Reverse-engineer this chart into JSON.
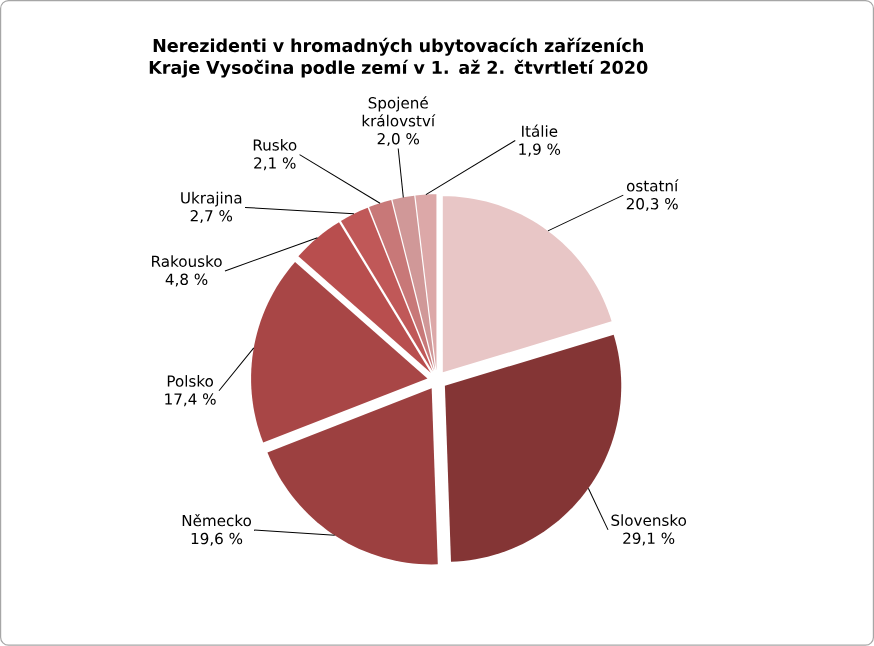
{
  "chart_data": {
    "type": "pie",
    "title": "Nerezidenti v hromadných ubytovacích zařízeních Kraje Vysočina podle zemí v 1. až 2. čtvrtletí 2020",
    "categories": [
      "ostatní",
      "Slovensko",
      "Německo",
      "Polsko",
      "Rakousko",
      "Ukrajina",
      "Rusko",
      "Spojené království",
      "Itálie"
    ],
    "values": [
      20.3,
      29.1,
      19.6,
      17.4,
      4.8,
      2.7,
      2.1,
      2.0,
      1.9
    ],
    "value_labels": [
      "20,3 %",
      "29,1 %",
      "19,6 %",
      "17,4 %",
      "4,8 %",
      "2,7 %",
      "2,1 %",
      "2,0 %",
      "1,9 %"
    ],
    "colors": [
      "#e8c6c6",
      "#843535",
      "#9c4040",
      "#a84646",
      "#b84e4e",
      "#c05858",
      "#c87878",
      "#d09898",
      "#dca8a8"
    ]
  }
}
